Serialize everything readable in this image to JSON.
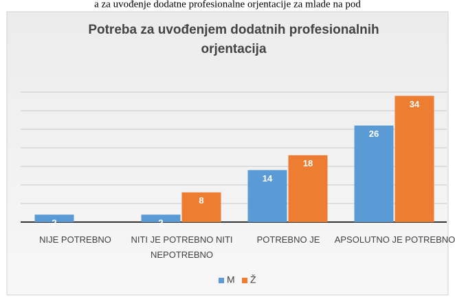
{
  "caption": "a za uvođenje dodatne profesionalne orjentacije za mlade na pod",
  "chart_data": {
    "type": "bar",
    "title": "Potreba za uvođenjem dodatnih profesionalnih orjentacija",
    "categories": [
      "NIJE POTREBNO",
      "NITI JE POTREBNO NITI NEPOTREBNO",
      "POTREBNO JE",
      "APSOLUTNO JE POTREBNO"
    ],
    "series": [
      {
        "name": "M",
        "color": "#5b9bd5",
        "values": [
          2,
          2,
          14,
          26
        ]
      },
      {
        "name": "Ž",
        "color": "#ed7d31",
        "values": [
          null,
          8,
          18,
          34
        ]
      }
    ],
    "ylim": [
      0,
      35
    ],
    "yticks": [
      0,
      5,
      10,
      15,
      20,
      25,
      30,
      35
    ],
    "grid": true,
    "legend": "bottom"
  }
}
